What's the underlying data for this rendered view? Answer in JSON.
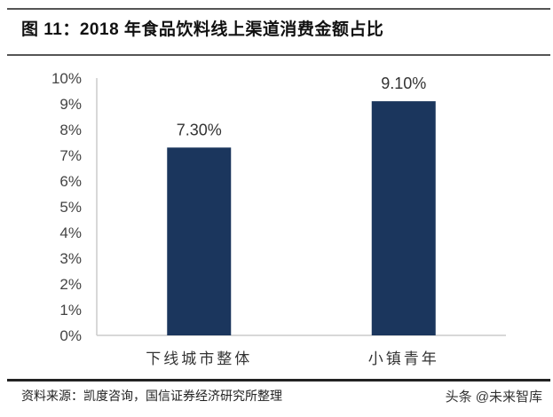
{
  "title": "图 11：2018 年食品饮料线上渠道消费金额占比",
  "source": "资料来源：凯度咨询，国信证券经济研究所整理",
  "watermark": "头条 @未来智库",
  "chart_data": {
    "type": "bar",
    "categories": [
      "下线城市整体",
      "小镇青年"
    ],
    "values": [
      7.3,
      9.1
    ],
    "data_labels": [
      "7.30%",
      "9.10%"
    ],
    "ylim": [
      0,
      10
    ],
    "yticks": [
      "0%",
      "1%",
      "2%",
      "3%",
      "4%",
      "5%",
      "6%",
      "7%",
      "8%",
      "9%",
      "10%"
    ],
    "bar_color": "#1b365d",
    "grid": false,
    "legend": "none"
  }
}
